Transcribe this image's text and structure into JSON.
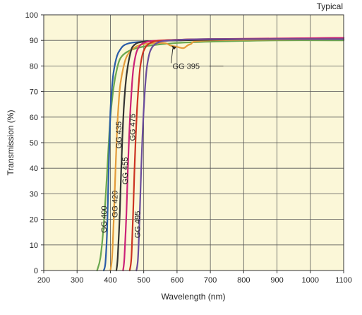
{
  "chart_data": {
    "type": "line",
    "title": "",
    "note": "Typical",
    "xlabel": "Wavelength (nm)",
    "ylabel": "Transmission (%)",
    "xlim": [
      200,
      1100
    ],
    "ylim": [
      0,
      100
    ],
    "xticks": [
      200,
      300,
      400,
      500,
      600,
      700,
      800,
      900,
      1000,
      1100
    ],
    "yticks": [
      0,
      10,
      20,
      30,
      40,
      50,
      60,
      70,
      80,
      90,
      100
    ],
    "grid": true,
    "legend": "none",
    "background_color": "#fbf7d8",
    "series": [
      {
        "name": "GG 395",
        "color": "#6aa84f",
        "x": [
          360,
          370,
          380,
          390,
          395,
          400,
          410,
          420,
          430,
          450,
          480,
          520,
          600,
          700,
          900,
          1100
        ],
        "y": [
          0,
          5,
          18,
          38,
          50,
          60,
          72,
          79,
          83,
          85.5,
          87,
          88,
          89,
          89.5,
          90,
          90
        ]
      },
      {
        "name": "GG 400",
        "color": "#2a5ca8",
        "x": [
          380,
          385,
          390,
          395,
          400,
          405,
          410,
          420,
          430,
          440,
          460,
          500,
          600,
          800,
          1100
        ],
        "y": [
          0,
          3,
          15,
          40,
          62,
          72,
          78,
          84,
          86.5,
          88,
          89,
          89.5,
          90,
          90.5,
          90.5
        ]
      },
      {
        "name": "GG 420",
        "color": "#e39c3a",
        "x": [
          400,
          405,
          410,
          415,
          420,
          425,
          430,
          440,
          450,
          470,
          500,
          560,
          580,
          600,
          620,
          640,
          700,
          1100
        ],
        "y": [
          0,
          5,
          20,
          38,
          55,
          66,
          73,
          80,
          84,
          87,
          88.5,
          89,
          88,
          87.5,
          87,
          88.5,
          90,
          90.5
        ]
      },
      {
        "name": "GG 435",
        "color": "#333333",
        "x": [
          418,
          422,
          428,
          432,
          436,
          440,
          445,
          450,
          460,
          470,
          500,
          600,
          800,
          1100
        ],
        "y": [
          0,
          5,
          22,
          38,
          52,
          63,
          72,
          78,
          85,
          88,
          89.5,
          90,
          90.5,
          91
        ]
      },
      {
        "name": "GG 455",
        "color": "#cc2277",
        "x": [
          438,
          442,
          448,
          452,
          456,
          460,
          465,
          470,
          480,
          500,
          550,
          700,
          1100
        ],
        "y": [
          0,
          5,
          22,
          38,
          52,
          63,
          73,
          80,
          86,
          89,
          90,
          90.5,
          91
        ]
      },
      {
        "name": "GG 475",
        "color": "#cc3322",
        "x": [
          458,
          463,
          468,
          472,
          476,
          480,
          485,
          490,
          500,
          520,
          560,
          700,
          1100
        ],
        "y": [
          0,
          5,
          22,
          38,
          52,
          63,
          73,
          80,
          86,
          89,
          90,
          90.5,
          90.5
        ]
      },
      {
        "name": "GG 495",
        "color": "#6a4c9c",
        "x": [
          478,
          483,
          488,
          492,
          496,
          500,
          505,
          510,
          520,
          540,
          580,
          700,
          1100
        ],
        "y": [
          0,
          5,
          22,
          38,
          52,
          63,
          73,
          80,
          86,
          89,
          90,
          90.5,
          90.5
        ]
      }
    ],
    "annotations": [
      {
        "text": "GG 400",
        "series": "GG 400",
        "x": 388,
        "y": 20
      },
      {
        "text": "GG 420",
        "series": "GG 420",
        "x": 421,
        "y": 26
      },
      {
        "text": "GG 435",
        "series": "GG 435",
        "x": 433,
        "y": 53
      },
      {
        "text": "GG 455",
        "series": "GG 455",
        "x": 452,
        "y": 39
      },
      {
        "text": "GG 475",
        "series": "GG 475",
        "x": 474,
        "y": 56
      },
      {
        "text": "GG 495",
        "series": "GG 495",
        "x": 489,
        "y": 18
      },
      {
        "text": "GG 395",
        "series": "GG 395",
        "x": 650,
        "y": 80,
        "arrow_to": [
          583,
          88
        ]
      }
    ]
  }
}
